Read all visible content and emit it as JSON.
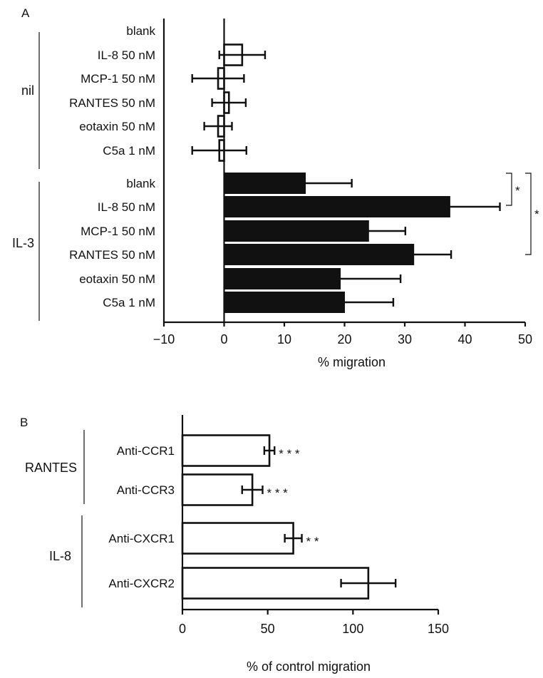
{
  "chart_data": [
    {
      "panel": "A",
      "type": "bar",
      "orientation": "horizontal",
      "xlabel": "% migration",
      "xlim": [
        -10,
        50
      ],
      "xticks": [
        -10,
        0,
        10,
        20,
        30,
        40,
        50
      ],
      "xtick_labels": [
        "−10",
        "0",
        "10",
        "20",
        "30",
        "40",
        "50"
      ],
      "groups": [
        {
          "label": "nil",
          "fill": "#ffffff",
          "bars": [
            {
              "label": "blank",
              "value": 0,
              "error": 0
            },
            {
              "label": "IL-8 50 nM",
              "value": 3,
              "error": 3.8
            },
            {
              "label": "MCP-1 50 nM",
              "value": -1,
              "error": 4.3
            },
            {
              "label": "RANTES 50 nM",
              "value": 0.8,
              "error": 2.8
            },
            {
              "label": "eotaxin 50 nM",
              "value": -1,
              "error": 2.3
            },
            {
              "label": "C5a   1 nM",
              "value": -0.8,
              "error": 4.5
            }
          ]
        },
        {
          "label": "IL-3",
          "fill": "#111111",
          "bars": [
            {
              "label": "blank",
              "value": 13.5,
              "error": 7.7
            },
            {
              "label": "IL-8 50 nM",
              "value": 37.5,
              "error": 8.3
            },
            {
              "label": "MCP-1 50 nM",
              "value": 24,
              "error": 6.1
            },
            {
              "label": "RANTES 50 nM",
              "value": 31.5,
              "error": 6.2
            },
            {
              "label": "eotaxin 50 nM",
              "value": 19.3,
              "error": 10
            },
            {
              "label": "C5a   1 nM",
              "value": 20,
              "error": 8.1
            }
          ]
        }
      ],
      "significance": [
        {
          "between": [
            "IL-3 blank",
            "IL-3 IL-8 50 nM"
          ],
          "label": "*"
        },
        {
          "between": [
            "IL-3 blank",
            "IL-3 RANTES 50 nM"
          ],
          "label": "*"
        }
      ]
    },
    {
      "panel": "B",
      "type": "bar",
      "orientation": "horizontal",
      "xlabel": "% of control migration",
      "xlim": [
        0,
        150
      ],
      "xticks": [
        0,
        50,
        100,
        150
      ],
      "xtick_labels": [
        "0",
        "50",
        "100",
        "150"
      ],
      "groups": [
        {
          "label": "RANTES",
          "fill": "#ffffff",
          "bars": [
            {
              "label": "Anti-CCR1",
              "value": 51,
              "error": 3,
              "significance": "* * *"
            },
            {
              "label": "Anti-CCR3",
              "value": 41,
              "error": 6,
              "significance": "* * *"
            }
          ]
        },
        {
          "label": "IL-8",
          "fill": "#ffffff",
          "bars": [
            {
              "label": "Anti-CXCR1",
              "value": 65,
              "error": 5,
              "significance": "* *"
            },
            {
              "label": "Anti-CXCR2",
              "value": 109,
              "error": 16,
              "significance": ""
            }
          ]
        }
      ]
    }
  ]
}
